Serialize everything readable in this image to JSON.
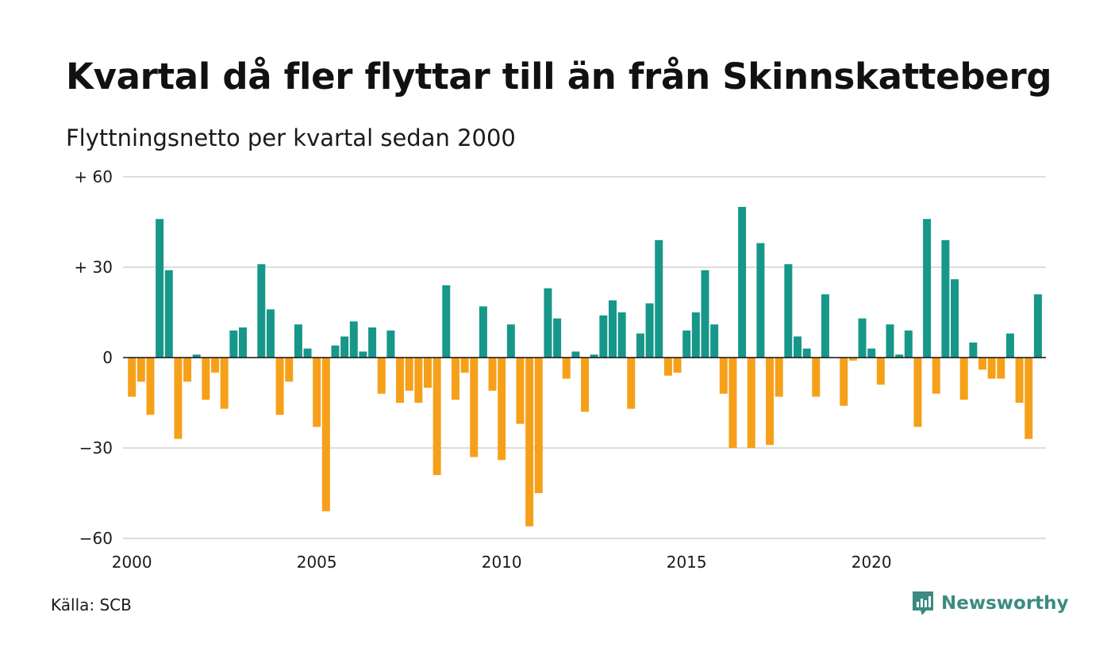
{
  "title": "Kvartal då fler flyttar till än från Skinnskatteberg",
  "subtitle": "Flyttningsnetto per kvartal sedan 2000",
  "source": "Källa: SCB",
  "brand": {
    "name": "Newsworthy",
    "icon": "newsworthy-logo-icon",
    "color": "#3b8b80"
  },
  "colors": {
    "positive": "#17978a",
    "negative": "#f6a01a",
    "grid": "#dddddd",
    "axis": "#111111"
  },
  "chart_data": {
    "type": "bar",
    "title": "Kvartal då fler flyttar till än från Skinnskatteberg",
    "subtitle": "Flyttningsnetto per kvartal sedan 2000",
    "xlabel": "",
    "ylabel": "",
    "ylim": [
      -60,
      60
    ],
    "yticks": [
      {
        "value": 60,
        "label": "+ 60"
      },
      {
        "value": 30,
        "label": "+ 30"
      },
      {
        "value": 0,
        "label": "0"
      },
      {
        "value": -30,
        "label": "−30"
      },
      {
        "value": -60,
        "label": "−60"
      }
    ],
    "xticks": [
      {
        "quarter_index": 0,
        "label": "2000"
      },
      {
        "quarter_index": 20,
        "label": "2005"
      },
      {
        "quarter_index": 40,
        "label": "2010"
      },
      {
        "quarter_index": 60,
        "label": "2015"
      },
      {
        "quarter_index": 80,
        "label": "2020"
      }
    ],
    "start": "2000 Q1",
    "grid": true,
    "legend": "none",
    "values": [
      -13,
      -8,
      -19,
      46,
      29,
      -27,
      -8,
      1,
      -14,
      -5,
      -17,
      9,
      10,
      0,
      31,
      16,
      -19,
      -8,
      11,
      3,
      -23,
      -51,
      4,
      7,
      12,
      2,
      10,
      -12,
      9,
      -15,
      -11,
      -15,
      -10,
      -39,
      24,
      -14,
      -5,
      -33,
      17,
      -11,
      -34,
      11,
      -22,
      -56,
      -45,
      23,
      13,
      -7,
      2,
      -18,
      1,
      14,
      19,
      15,
      -17,
      8,
      18,
      39,
      -6,
      -5,
      9,
      15,
      29,
      11,
      -12,
      -30,
      50,
      -30,
      38,
      -29,
      -13,
      31,
      7,
      3,
      -13,
      21,
      0,
      -16,
      -1,
      13,
      3,
      -9,
      11,
      1,
      9,
      -23,
      46,
      -12,
      39,
      26,
      -14,
      5,
      -4,
      -7,
      -7,
      8,
      -15,
      -27,
      21
    ]
  }
}
